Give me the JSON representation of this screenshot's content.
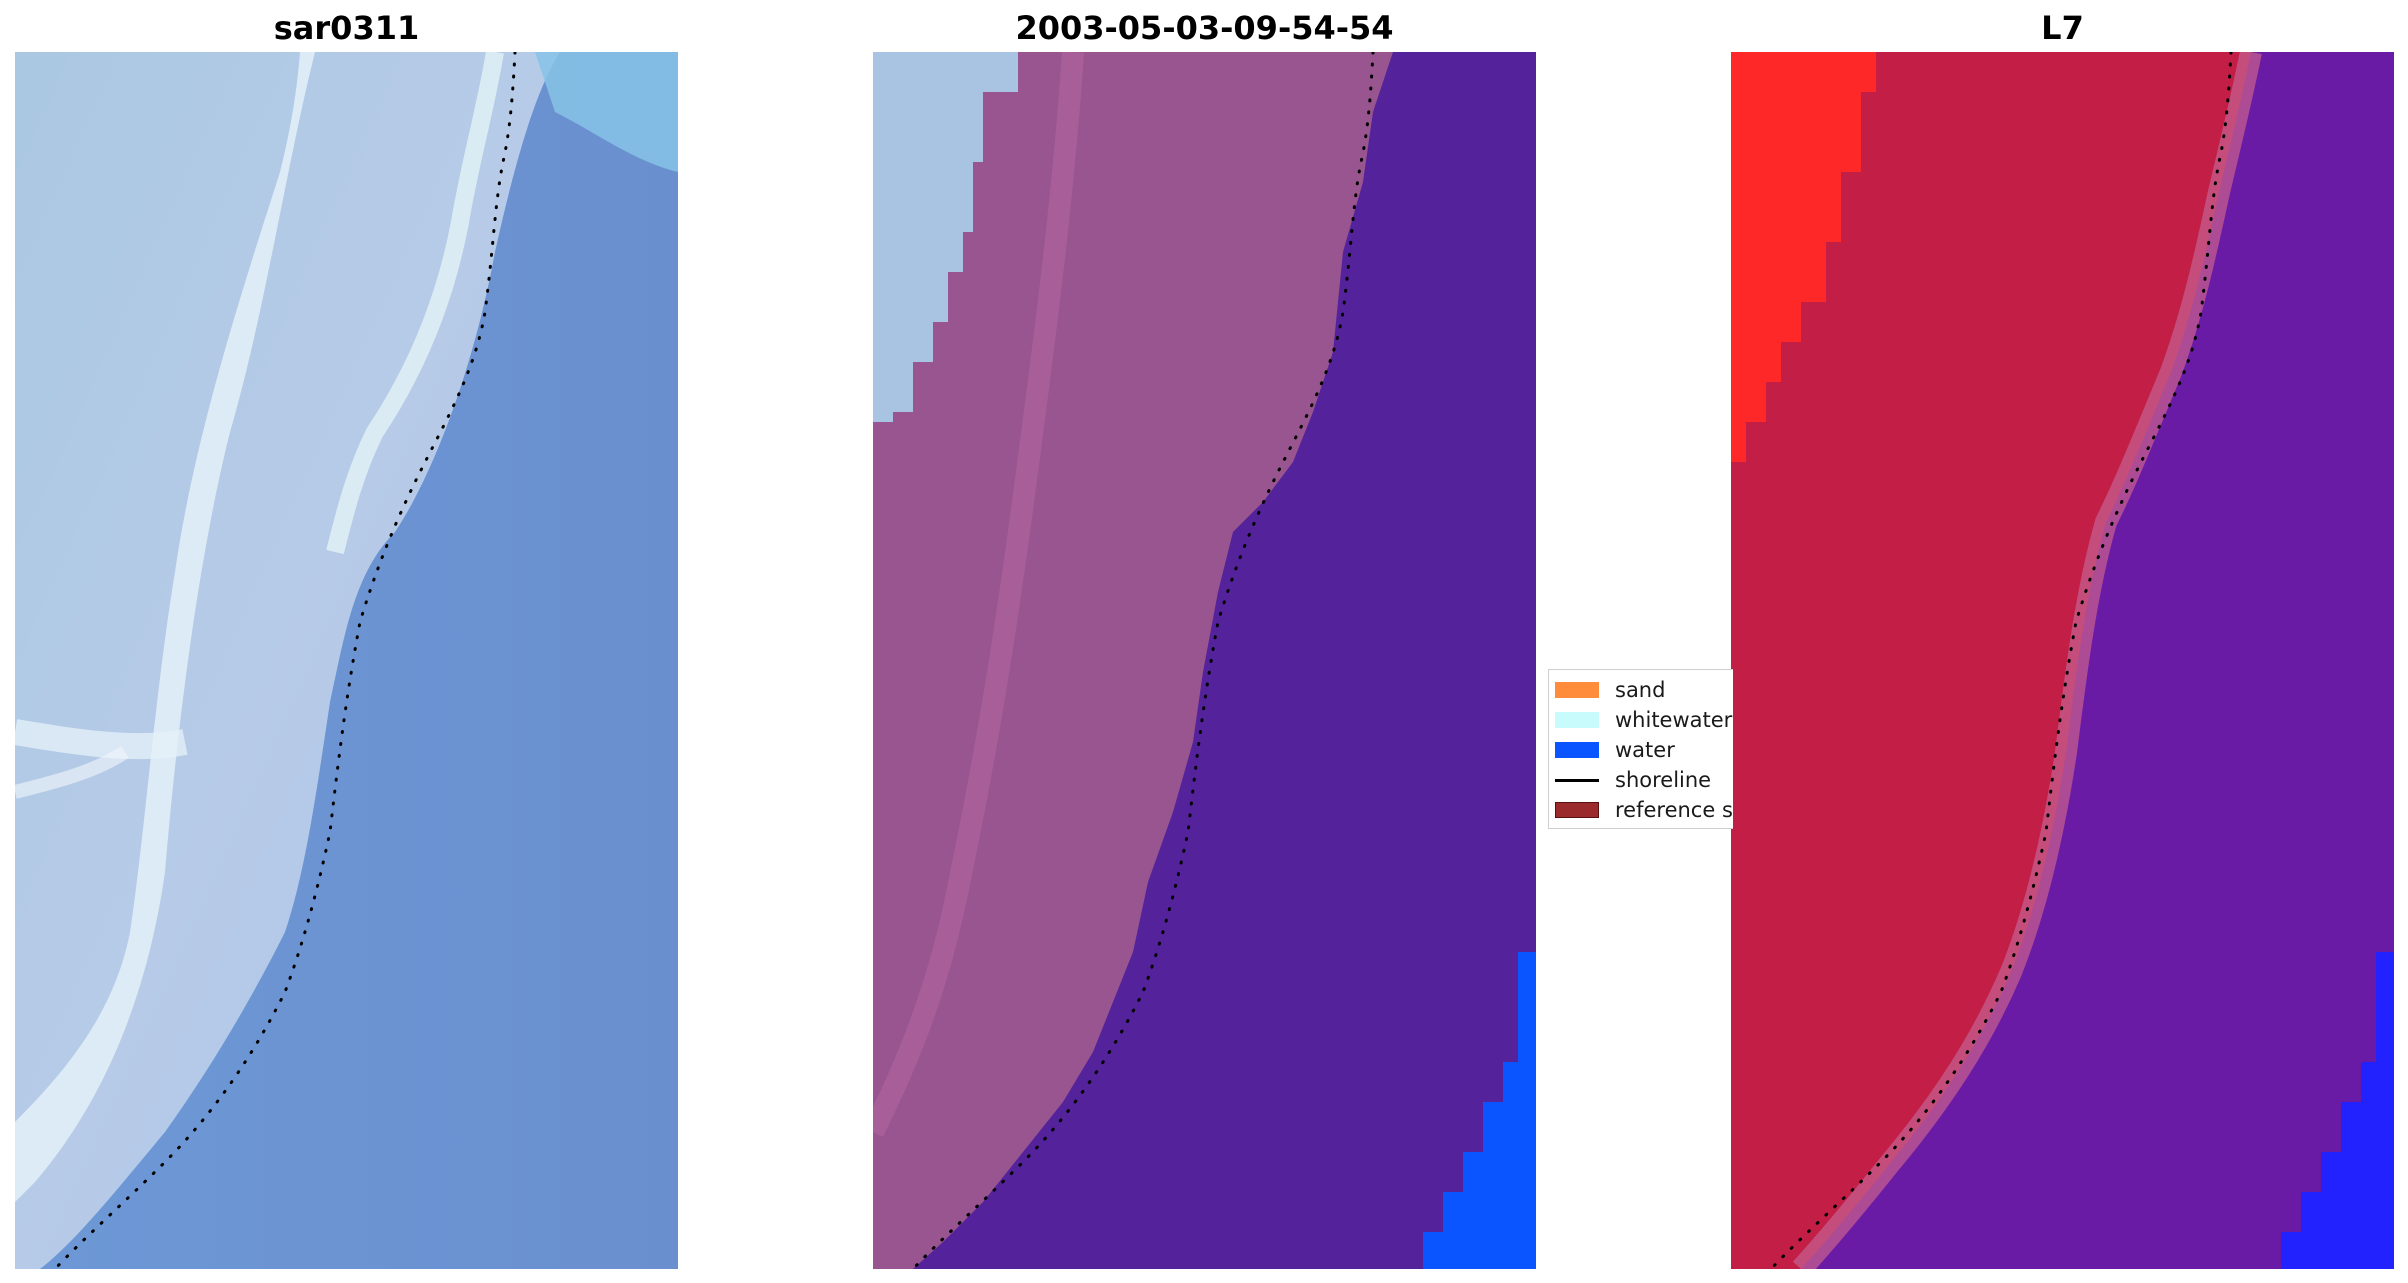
{
  "panels": [
    {
      "title": "sar0311"
    },
    {
      "title": "2003-05-03-09-54-54"
    },
    {
      "title": "L7"
    }
  ],
  "legend": {
    "items": [
      {
        "label": "sand",
        "color": "#ff8c3a",
        "kind": "patch"
      },
      {
        "label": "whitewater",
        "color": "#c8fbfb",
        "kind": "patch"
      },
      {
        "label": "water",
        "color": "#0a55ff",
        "kind": "patch"
      },
      {
        "label": "shoreline",
        "color": "#000000",
        "kind": "line"
      },
      {
        "label": "reference s",
        "color": "#9b2a2d",
        "kind": "patch"
      }
    ]
  },
  "colors": {
    "rgb_land": "#b4c8e6",
    "rgb_ocean": "#7096d2",
    "rgb_surf": "#e6f5fa",
    "classified_land": "#98558f",
    "classified_ocean": "#54229a",
    "classified_whitewater": "#a8c4e2",
    "classified_water": "#0a55ff",
    "index_land": "#c21e46",
    "index_ocean": "#6a1ba6",
    "index_sand": "#ff2828",
    "index_water": "#2222ff",
    "shoreline": "#000000"
  }
}
